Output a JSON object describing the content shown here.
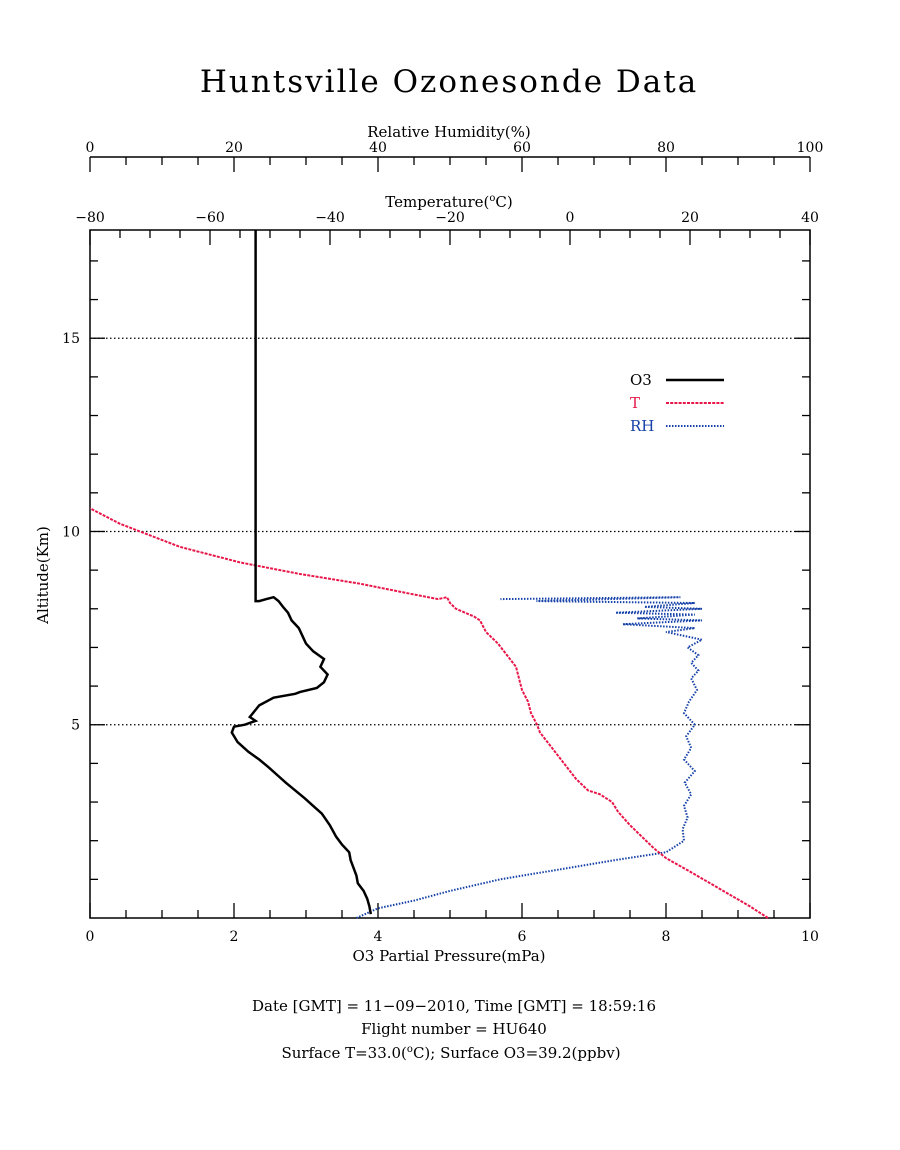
{
  "chart_data": {
    "type": "line",
    "title": "Huntsville Ozonesonde Data",
    "axes": {
      "rh": {
        "label": "Relative Humidity(%)",
        "range": [
          0,
          100
        ],
        "ticks": [
          "0",
          "20",
          "40",
          "60",
          "80",
          "100"
        ]
      },
      "temp": {
        "label_main": "Temperature(",
        "label_sup": "o",
        "label_end": "C)",
        "range": [
          -80,
          40
        ],
        "ticks": [
          "−80",
          "−60",
          "−40",
          "−20",
          "0",
          "20",
          "40"
        ]
      },
      "o3": {
        "label": "O3 Partial Pressure(mPa)",
        "range": [
          0,
          10
        ],
        "ticks": [
          "0",
          "2",
          "4",
          "6",
          "8",
          "10"
        ]
      },
      "alt": {
        "label": "Altitude(Km)",
        "range": [
          0,
          17.8
        ],
        "ticks": [
          "5",
          "10",
          "15"
        ]
      }
    },
    "grid": "dotted horizontal at 5, 10, 15 km",
    "legend": {
      "placement": "upper-right",
      "entries": [
        "O3",
        "T",
        "RH"
      ]
    },
    "colors": {
      "o3": "#000000",
      "t": "#e8174a",
      "rh": "#1440a8"
    },
    "series": [
      {
        "name": "O3",
        "x": [
          3.9,
          3.88,
          3.85,
          3.8,
          3.72,
          3.7,
          3.66,
          3.62,
          3.6,
          3.5,
          3.42,
          3.33,
          3.22,
          3.1,
          2.98,
          2.85,
          2.72,
          2.6,
          2.48,
          2.35,
          2.2,
          2.05,
          1.97,
          2.0,
          2.15,
          2.3,
          2.22,
          2.35,
          2.55,
          2.85,
          2.92,
          3.15,
          3.25,
          3.3,
          3.2,
          3.25,
          3.1,
          3.0,
          2.95,
          2.9,
          2.8,
          2.75,
          2.68,
          2.62,
          2.55,
          2.45,
          2.35,
          2.3,
          2.3,
          2.3,
          2.3
        ],
        "y": [
          0.1,
          0.3,
          0.5,
          0.7,
          0.9,
          1.1,
          1.3,
          1.5,
          1.7,
          1.9,
          2.1,
          2.4,
          2.7,
          2.9,
          3.1,
          3.3,
          3.5,
          3.7,
          3.9,
          4.1,
          4.3,
          4.55,
          4.8,
          4.95,
          5.0,
          5.1,
          5.2,
          5.5,
          5.7,
          5.8,
          5.85,
          5.95,
          6.1,
          6.3,
          6.5,
          6.7,
          6.9,
          7.1,
          7.3,
          7.5,
          7.7,
          7.9,
          8.05,
          8.2,
          8.3,
          8.25,
          8.2,
          8.2,
          9.0,
          12.0,
          17.8
        ]
      },
      {
        "name": "T",
        "x": [
          33,
          30,
          25,
          20,
          16,
          14,
          12,
          10,
          8,
          7,
          5,
          3,
          1,
          -1,
          -3,
          -5,
          -5.5,
          -6.5,
          -7,
          -8,
          -8.5,
          -9,
          -10.5,
          -12,
          -14,
          -15,
          -16,
          -19,
          -20,
          -20.5,
          -22,
          -27,
          -35,
          -45,
          -55,
          -65,
          -75,
          -80
        ],
        "y": [
          0.0,
          0.3,
          0.75,
          1.2,
          1.55,
          1.8,
          2.1,
          2.4,
          2.75,
          3.0,
          3.2,
          3.3,
          3.6,
          4.0,
          4.4,
          4.8,
          5.0,
          5.3,
          5.6,
          5.9,
          6.2,
          6.5,
          6.8,
          7.1,
          7.4,
          7.7,
          7.8,
          8.0,
          8.15,
          8.3,
          8.25,
          8.4,
          8.65,
          8.9,
          9.2,
          9.6,
          10.2,
          10.6
        ]
      },
      {
        "name": "RH",
        "x": [
          37,
          40,
          45,
          50,
          57,
          65,
          73,
          80,
          82.5,
          82.3,
          83,
          82.5,
          83.5,
          82.6,
          84,
          82.5,
          83.5,
          82.8,
          84,
          82.5,
          83.2,
          84.3,
          83.5,
          84.5,
          83.5,
          84.5,
          83,
          85,
          80,
          84,
          74,
          85,
          76,
          84,
          73,
          85,
          77,
          84,
          62,
          82,
          57
        ],
        "y": [
          0.0,
          0.25,
          0.45,
          0.7,
          1.0,
          1.25,
          1.5,
          1.7,
          2.0,
          2.3,
          2.6,
          2.9,
          3.2,
          3.5,
          3.8,
          4.1,
          4.4,
          4.7,
          5.0,
          5.3,
          5.6,
          5.9,
          6.2,
          6.4,
          6.6,
          6.8,
          7.0,
          7.2,
          7.4,
          7.5,
          7.6,
          7.7,
          7.75,
          7.85,
          7.9,
          8.0,
          8.05,
          8.15,
          8.2,
          8.3,
          8.25
        ]
      }
    ]
  },
  "footer": {
    "line1": "Date [GMT] = 11−09−2010,  Time [GMT] = 18:59:16",
    "line2": "Flight number = HU640",
    "line3_a": "Surface T=33.0(",
    "line3_sup": "o",
    "line3_b": "C); Surface O3=39.2(ppbv)"
  }
}
